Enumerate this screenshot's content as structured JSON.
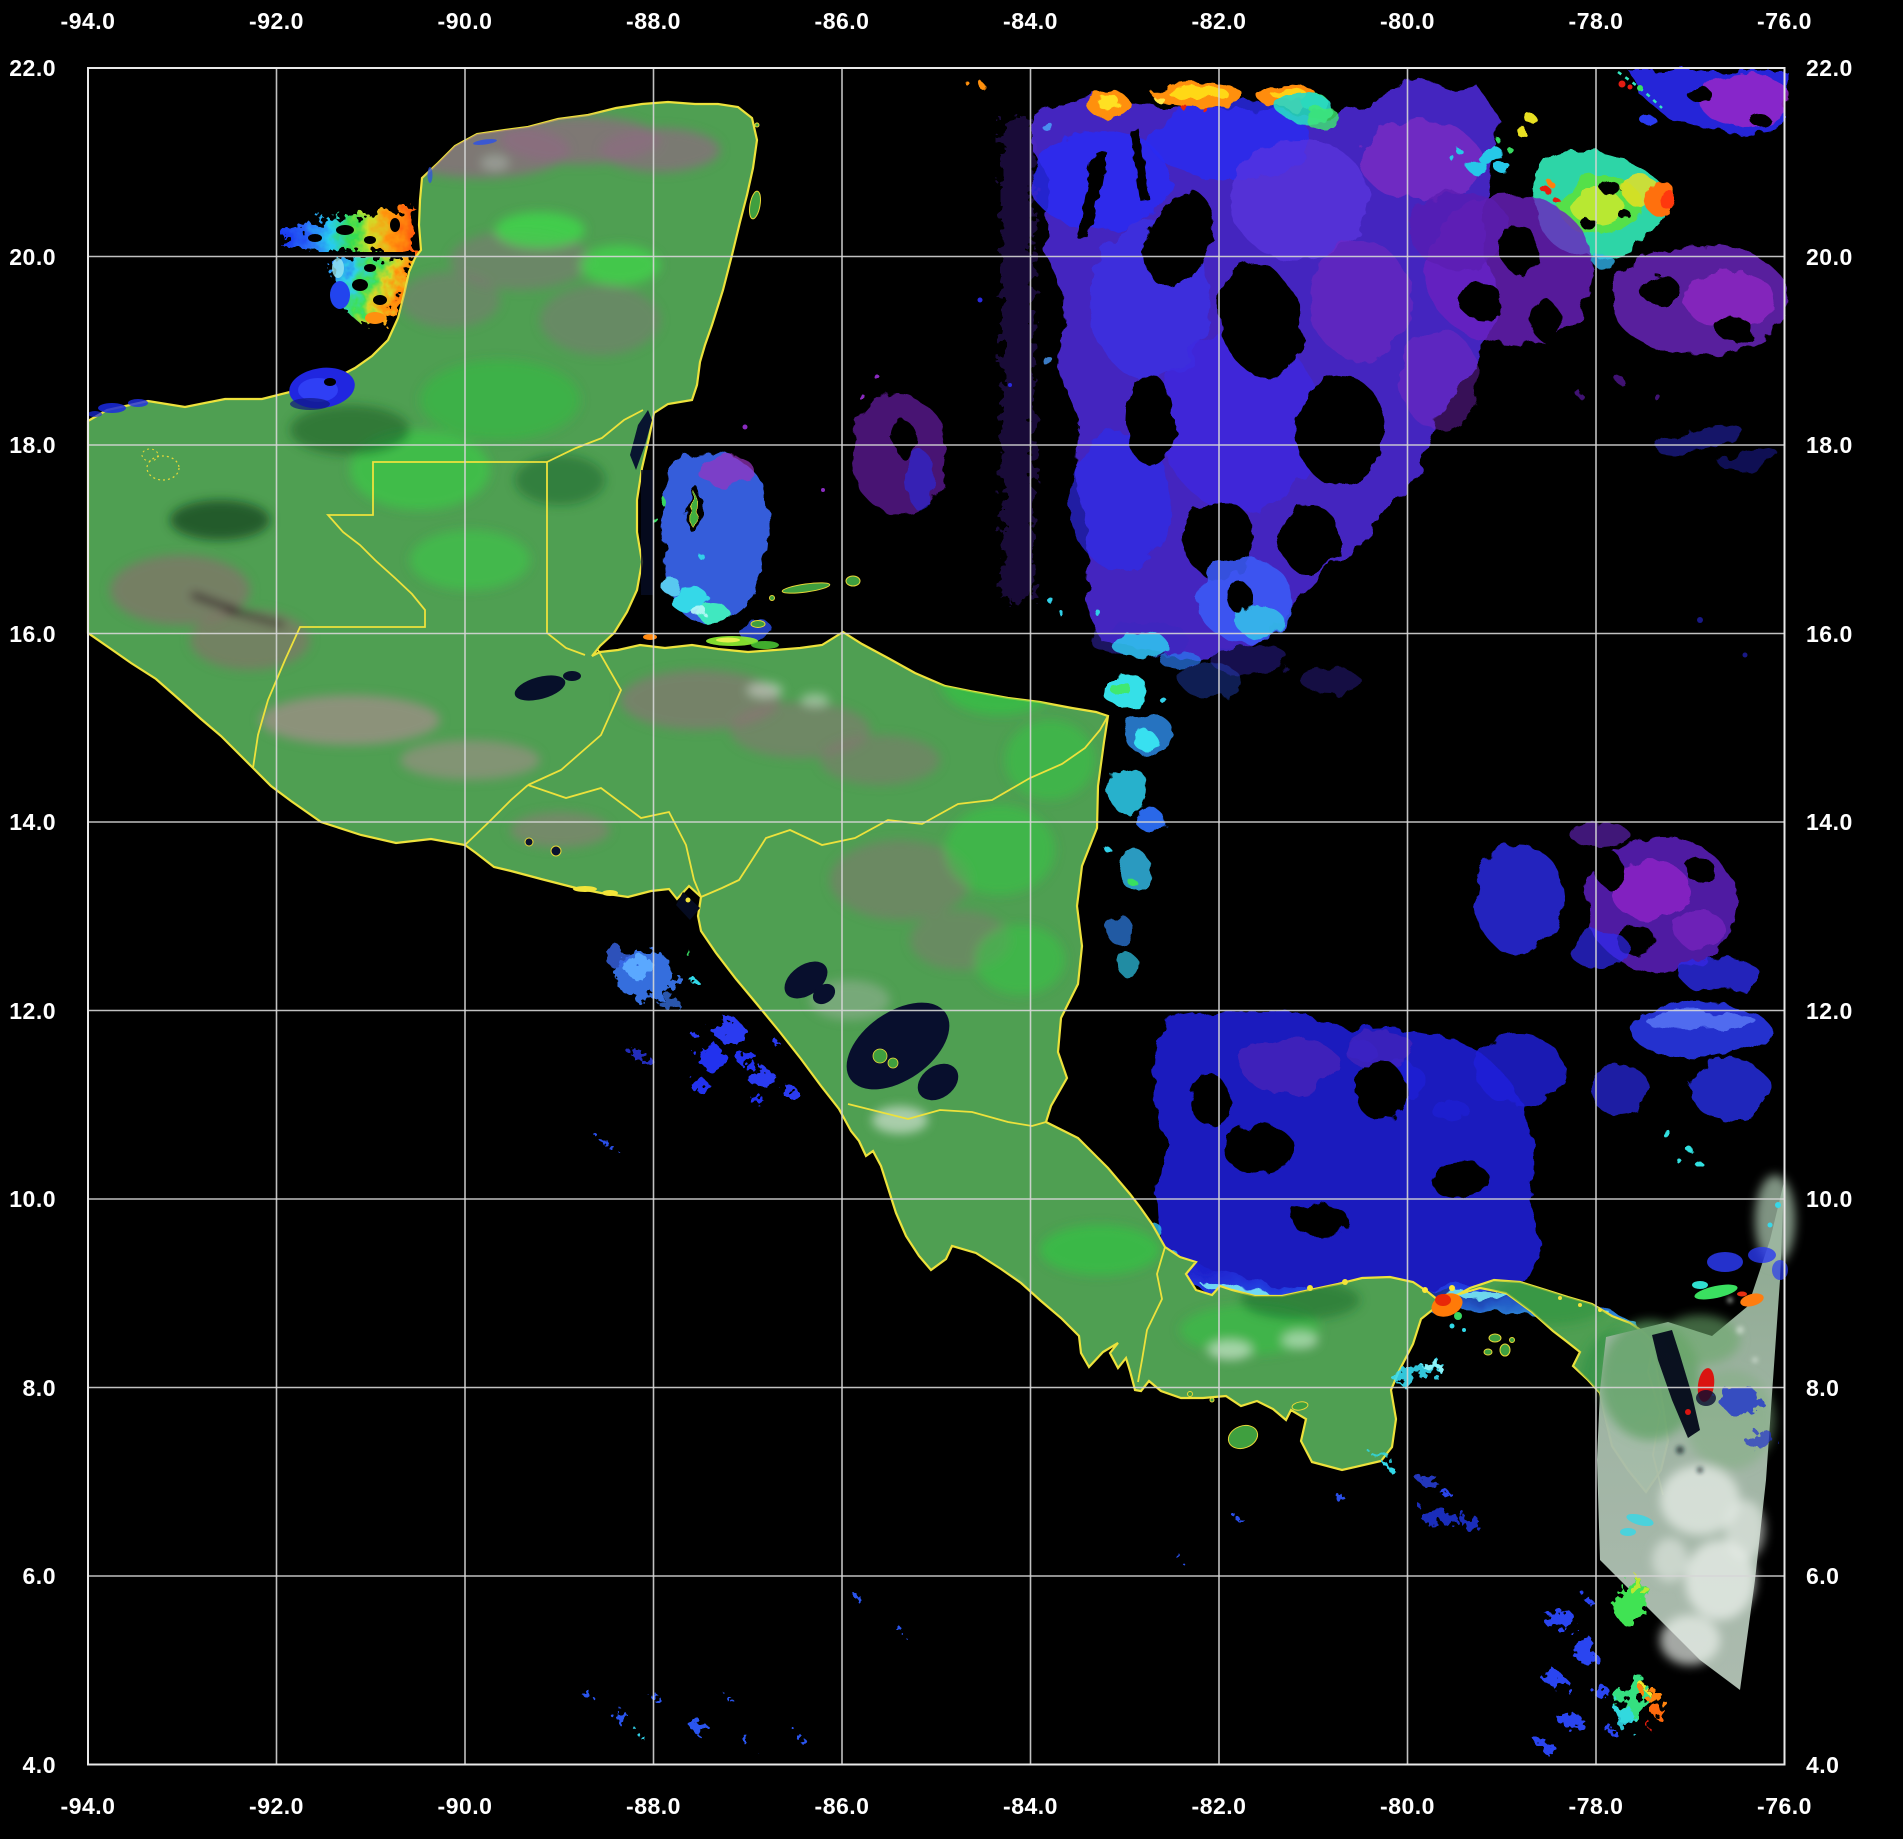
{
  "figure": {
    "kind": "satellite composite map with latitude/longitude grid",
    "region_shown": "Central America and western Caribbean"
  },
  "axes": {
    "longitude": {
      "labels": [
        "-94.0",
        "-92.0",
        "-90.0",
        "-88.0",
        "-86.0",
        "-84.0",
        "-82.0",
        "-80.0",
        "-78.0",
        "-76.0"
      ],
      "min": -94.0,
      "max": -76.0,
      "step": 2.0,
      "shown_on": [
        "top",
        "bottom"
      ]
    },
    "latitude": {
      "labels": [
        "22.0",
        "20.0",
        "18.0",
        "16.0",
        "14.0",
        "12.0",
        "10.0",
        "8.0",
        "6.0",
        "4.0"
      ],
      "min": 4.0,
      "max": 22.0,
      "step": 2.0,
      "shown_on": [
        "left",
        "right"
      ]
    }
  },
  "grid": {
    "on": true,
    "spacing_degrees": 2.0
  },
  "colors": {
    "background": "#000000",
    "grid_line": "#d6d6d6",
    "frame_line": "#e8e8e8",
    "tick_text": "#ffffff",
    "coast_border_yellow": "#ede23c",
    "land_green": "#4f9f52",
    "land_bright_green": "#3fd84a",
    "land_dark_green": "#1b5f2a",
    "land_mauve": "#8d6b80",
    "highland_pink": "#b58a96",
    "lake_dark": "#080f2d",
    "ocean_data_blue": "#2a2af0",
    "ocean_data_violet": "#5a28cf",
    "ocean_data_magenta": "#9228c8",
    "data_cyan": "#38dcf2",
    "data_green": "#3fe055",
    "data_yellow": "#efe42a",
    "data_orange": "#ff9010",
    "data_red": "#e41c10",
    "cloud_blue": "#3a7af5",
    "swath_gray_green": "#a7bcab",
    "cloud_white": "#e9efe9"
  }
}
